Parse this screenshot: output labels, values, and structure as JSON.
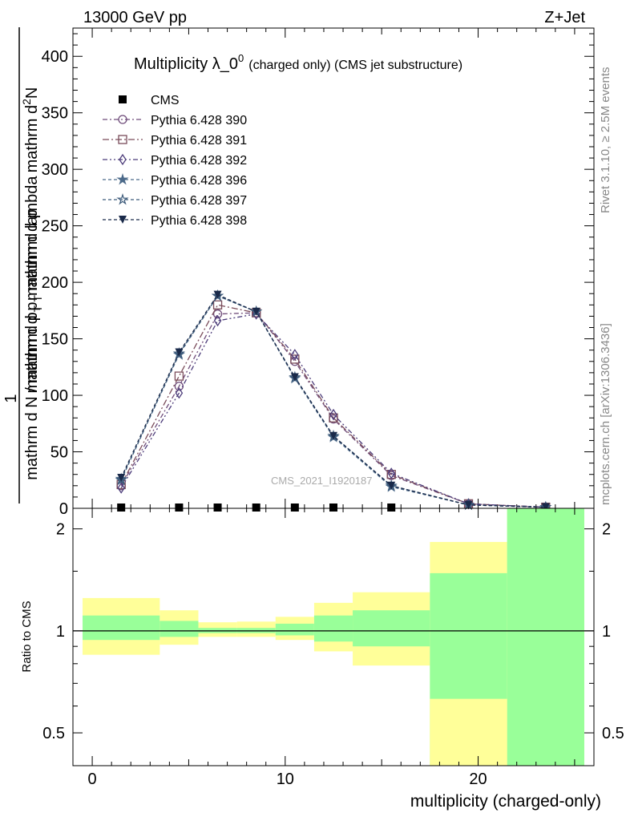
{
  "header": {
    "left_label": "13000 GeV pp",
    "right_label": "Z+Jet"
  },
  "side": {
    "rivet_label": "Rivet 3.1.10, ≥ 2.5M events",
    "mcplots_label": "mcplots.cern.ch [arXiv:1306.3436]"
  },
  "watermark": "CMS_2021_I1920187",
  "colors": {
    "cms": "#000000",
    "p390": "#6f4c7a",
    "p391": "#7a4c5a",
    "p392": "#4c3c7a",
    "p396": "#4c6a8a",
    "p397": "#3c5a7a",
    "p398": "#1a2a4a",
    "band_inner": "#99ff99",
    "band_outer": "#ffff99"
  },
  "chart_data": [
    {
      "type": "line",
      "title": "Multiplicity λ_0",
      "title_sup": "0",
      "subtitle": "(charged only) (CMS jet substructure)",
      "ylabel_top": "1",
      "ylabel_num": "mathrm d",
      "ylabel_num_sup": "2",
      "ylabel_num_tail": "N",
      "ylabel_den": "mathrm d p",
      "ylabel_den_sub": "T",
      "ylabel_den_tail": " mathrm d lambda",
      "ylabel_bottom": "mathrm d N / mathrm d p",
      "ylabel_bottom_sub": "T",
      "ylabel_bottom_tail": " mathrm d p",
      "xlim": [
        -1,
        26
      ],
      "ylim": [
        0,
        425
      ],
      "yticks": [
        0,
        50,
        100,
        150,
        200,
        250,
        300,
        350,
        400
      ],
      "legend_position": "top-left",
      "series": [
        {
          "name": "CMS",
          "key": "cms",
          "marker": "square-filled",
          "x": [
            1.5,
            4.5,
            6.5,
            8.5,
            10.5,
            12.5,
            15.5
          ],
          "y": [
            0,
            0,
            0,
            0,
            0,
            0,
            0
          ]
        },
        {
          "name": "Pythia 6.428 390",
          "key": "p390",
          "marker": "circle-open",
          "dash": "6,3,2,3",
          "x": [
            1.5,
            4.5,
            6.5,
            8.5,
            10.5,
            12.5,
            15.5,
            19.5,
            23.5
          ],
          "y": [
            20,
            108,
            172,
            173,
            130,
            79,
            29,
            4,
            1
          ]
        },
        {
          "name": "Pythia 6.428 391",
          "key": "p391",
          "marker": "square-open",
          "dash": "8,3,2,3",
          "x": [
            1.5,
            4.5,
            6.5,
            8.5,
            10.5,
            12.5,
            15.5,
            19.5,
            23.5
          ],
          "y": [
            21,
            117,
            180,
            173,
            132,
            80,
            30,
            4,
            1
          ]
        },
        {
          "name": "Pythia 6.428 392",
          "key": "p392",
          "marker": "diamond-open",
          "dash": "6,3,2,3,2,3",
          "x": [
            1.5,
            4.5,
            6.5,
            8.5,
            10.5,
            12.5,
            15.5,
            19.5,
            23.5
          ],
          "y": [
            18,
            102,
            166,
            172,
            136,
            83,
            31,
            4,
            1
          ]
        },
        {
          "name": "Pythia 6.428 396",
          "key": "p396",
          "marker": "star-filled",
          "dash": "4,3",
          "x": [
            1.5,
            4.5,
            6.5,
            8.5,
            10.5,
            12.5,
            15.5,
            19.5,
            23.5
          ],
          "y": [
            26,
            136,
            188,
            174,
            115,
            63,
            19,
            3,
            1
          ]
        },
        {
          "name": "Pythia 6.428 397",
          "key": "p397",
          "marker": "star-open",
          "dash": "4,3",
          "x": [
            1.5,
            4.5,
            6.5,
            8.5,
            10.5,
            12.5,
            15.5,
            19.5,
            23.5
          ],
          "y": [
            25,
            137,
            188,
            174,
            116,
            64,
            20,
            3,
            1
          ]
        },
        {
          "name": "Pythia 6.428 398",
          "key": "p398",
          "marker": "triangle-down-filled",
          "dash": "4,3",
          "x": [
            1.5,
            4.5,
            6.5,
            8.5,
            10.5,
            12.5,
            15.5,
            19.5,
            23.5
          ],
          "y": [
            27,
            138,
            189,
            174,
            116,
            64,
            20,
            3,
            1
          ]
        }
      ]
    },
    {
      "type": "area",
      "xlabel": "multiplicity (charged-only)",
      "ylabel": "Ratio to CMS",
      "xlim": [
        -1,
        26
      ],
      "ylim": [
        0.4,
        2.3
      ],
      "log_y": true,
      "xticks": [
        0,
        10,
        20
      ],
      "yticks": [
        0.5,
        1,
        2
      ],
      "reference_line": 1,
      "bins": [
        {
          "lo": -0.5,
          "hi": 3.5,
          "inner": [
            0.94,
            1.11
          ],
          "outer": [
            0.85,
            1.25
          ]
        },
        {
          "lo": 3.5,
          "hi": 5.5,
          "inner": [
            0.96,
            1.07
          ],
          "outer": [
            0.91,
            1.15
          ]
        },
        {
          "lo": 5.5,
          "hi": 7.5,
          "inner": [
            0.985,
            1.02
          ],
          "outer": [
            0.96,
            1.06
          ]
        },
        {
          "lo": 7.5,
          "hi": 9.5,
          "inner": [
            0.985,
            1.02
          ],
          "outer": [
            0.96,
            1.065
          ]
        },
        {
          "lo": 9.5,
          "hi": 11.5,
          "inner": [
            0.97,
            1.05
          ],
          "outer": [
            0.94,
            1.1
          ]
        },
        {
          "lo": 11.5,
          "hi": 13.5,
          "inner": [
            0.93,
            1.11
          ],
          "outer": [
            0.87,
            1.21
          ]
        },
        {
          "lo": 13.5,
          "hi": 17.5,
          "inner": [
            0.9,
            1.15
          ],
          "outer": [
            0.79,
            1.3
          ]
        },
        {
          "lo": 17.5,
          "hi": 21.5,
          "inner": [
            0.4,
            1.48
          ],
          "outer": [
            0.4,
            1.83
          ]
        },
        {
          "lo": 21.5,
          "hi": 25.5,
          "inner": [
            0.4,
            2.3
          ],
          "outer": [
            0.4,
            2.3
          ]
        }
      ],
      "outer_gap_17_21": [
        0.63,
        0.63
      ]
    }
  ]
}
